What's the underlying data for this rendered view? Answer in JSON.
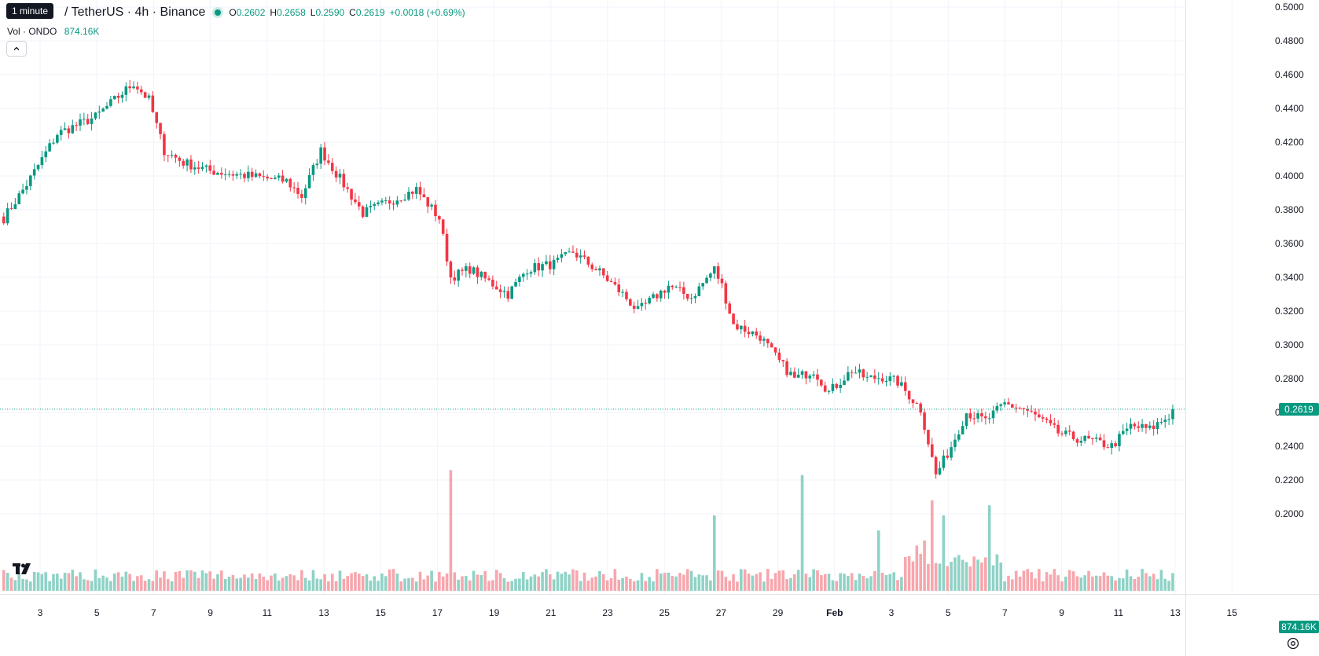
{
  "legend": {
    "tooltip": "1 minute",
    "title": "/ TetherUS · 4h · Binance",
    "open_label": "O",
    "open": "0.2602",
    "high_label": "H",
    "high": "0.2658",
    "low_label": "L",
    "low": "0.2590",
    "close_label": "C",
    "close": "0.2619",
    "change": "+0.0018 (+0.69%)",
    "vol_label": "Vol · ONDO",
    "vol_value": "874.16K"
  },
  "price_axis": {
    "labels": [
      "0.5000",
      "0.4800",
      "0.4600",
      "0.4400",
      "0.4200",
      "0.4000",
      "0.3800",
      "0.3600",
      "0.3400",
      "0.3200",
      "0.3000",
      "0.2800",
      "0.2600",
      "0.2400",
      "0.2200",
      "0.2000"
    ],
    "last_price_badge": "0.2619",
    "volume_badge": "874.16K"
  },
  "time_axis": {
    "labels": [
      "3",
      "5",
      "7",
      "9",
      "11",
      "13",
      "15",
      "17",
      "19",
      "21",
      "23",
      "25",
      "27",
      "29",
      "Feb",
      "3",
      "5",
      "7",
      "9",
      "11",
      "13",
      "15"
    ]
  },
  "colors": {
    "up": "#089981",
    "down": "#f23645",
    "up_volume": "#8fd2c6",
    "down_volume": "#f7a6ad",
    "grid": "#f0f3fa"
  },
  "icons": {
    "logo": "tradingview-logo-icon",
    "settings": "gear-icon",
    "collapse": "chevron-up-icon"
  },
  "chart_data": {
    "type": "candlestick",
    "interval": "4h",
    "ylim": [
      0.18,
      0.5
    ],
    "x_range": [
      "Jan 2",
      "Feb 15"
    ],
    "grid": true,
    "last_price": 0.2619,
    "daily_closes": [
      [
        "Jan 2",
        0.375
      ],
      [
        "Jan 3",
        0.405
      ],
      [
        "Jan 4",
        0.425
      ],
      [
        "Jan 5",
        0.44
      ],
      [
        "Jan 6",
        0.452
      ],
      [
        "Jan 7",
        0.432
      ],
      [
        "Jan 8",
        0.415
      ],
      [
        "Jan 9",
        0.405
      ],
      [
        "Jan 10",
        0.402
      ],
      [
        "Jan 11",
        0.4
      ],
      [
        "Jan 12",
        0.396
      ],
      [
        "Jan 13",
        0.39
      ],
      [
        "Jan 14",
        0.415
      ],
      [
        "Jan 15",
        0.395
      ],
      [
        "Jan 16",
        0.378
      ],
      [
        "Jan 17",
        0.388
      ],
      [
        "Jan 18",
        0.392
      ],
      [
        "Jan 19",
        0.34
      ],
      [
        "Jan 20",
        0.342
      ],
      [
        "Jan 21",
        0.33
      ],
      [
        "Jan 22",
        0.345
      ],
      [
        "Jan 23",
        0.348
      ],
      [
        "Jan 24",
        0.343
      ],
      [
        "Jan 25",
        0.335
      ],
      [
        "Jan 26",
        0.33
      ],
      [
        "Jan 27",
        0.336
      ],
      [
        "Jan 28",
        0.34
      ],
      [
        "Jan 29",
        0.342
      ],
      [
        "Jan 30",
        0.31
      ],
      [
        "Jan 31",
        0.305
      ],
      [
        "Feb 1",
        0.285
      ],
      [
        "Feb 2",
        0.275
      ],
      [
        "Feb 3",
        0.282
      ],
      [
        "Feb 4",
        0.282
      ],
      [
        "Feb 5",
        0.265
      ],
      [
        "Feb 6",
        0.225
      ],
      [
        "Feb 7",
        0.26
      ],
      [
        "Feb 8",
        0.265
      ],
      [
        "Feb 9",
        0.262
      ],
      [
        "Feb 10",
        0.245
      ],
      [
        "Feb 11",
        0.245
      ],
      [
        "Feb 12",
        0.24
      ],
      [
        "Feb 13",
        0.25
      ],
      [
        "Feb 14",
        0.262
      ]
    ],
    "anchors": [
      [
        0,
        0.375
      ],
      [
        6,
        0.395
      ],
      [
        14,
        0.425
      ],
      [
        24,
        0.435
      ],
      [
        34,
        0.455
      ],
      [
        38,
        0.445
      ],
      [
        42,
        0.415
      ],
      [
        47,
        0.408
      ],
      [
        54,
        0.403
      ],
      [
        64,
        0.4
      ],
      [
        74,
        0.397
      ],
      [
        78,
        0.388
      ],
      [
        83,
        0.415
      ],
      [
        89,
        0.395
      ],
      [
        94,
        0.378
      ],
      [
        101,
        0.385
      ],
      [
        108,
        0.392
      ],
      [
        114,
        0.375
      ],
      [
        117,
        0.34
      ],
      [
        122,
        0.345
      ],
      [
        132,
        0.33
      ],
      [
        137,
        0.345
      ],
      [
        144,
        0.348
      ],
      [
        149,
        0.355
      ],
      [
        156,
        0.343
      ],
      [
        162,
        0.33
      ],
      [
        166,
        0.32
      ],
      [
        174,
        0.335
      ],
      [
        180,
        0.328
      ],
      [
        186,
        0.345
      ],
      [
        188,
        0.335
      ],
      [
        191,
        0.312
      ],
      [
        198,
        0.305
      ],
      [
        203,
        0.29
      ],
      [
        207,
        0.28
      ],
      [
        212,
        0.285
      ],
      [
        216,
        0.272
      ],
      [
        222,
        0.285
      ],
      [
        226,
        0.28
      ],
      [
        230,
        0.281
      ],
      [
        234,
        0.278
      ],
      [
        240,
        0.262
      ],
      [
        244,
        0.223
      ],
      [
        248,
        0.24
      ],
      [
        252,
        0.26
      ],
      [
        257,
        0.255
      ],
      [
        262,
        0.265
      ],
      [
        267,
        0.262
      ],
      [
        272,
        0.255
      ],
      [
        276,
        0.248
      ],
      [
        280,
        0.245
      ],
      [
        285,
        0.243
      ],
      [
        290,
        0.24
      ],
      [
        295,
        0.252
      ],
      [
        300,
        0.25
      ],
      [
        305,
        0.258
      ],
      [
        306,
        0.2619
      ]
    ],
    "volume_peaks_k": [
      [
        "Jan 19",
        2400
      ],
      [
        "Jan 28",
        1500
      ],
      [
        "Jan 31",
        2300
      ],
      [
        "Feb 3",
        1200
      ],
      [
        "Feb 6",
        1800
      ],
      [
        "Feb 7",
        1500
      ],
      [
        "Feb 9",
        1700
      ]
    ],
    "last_volume_k": 874.16
  }
}
